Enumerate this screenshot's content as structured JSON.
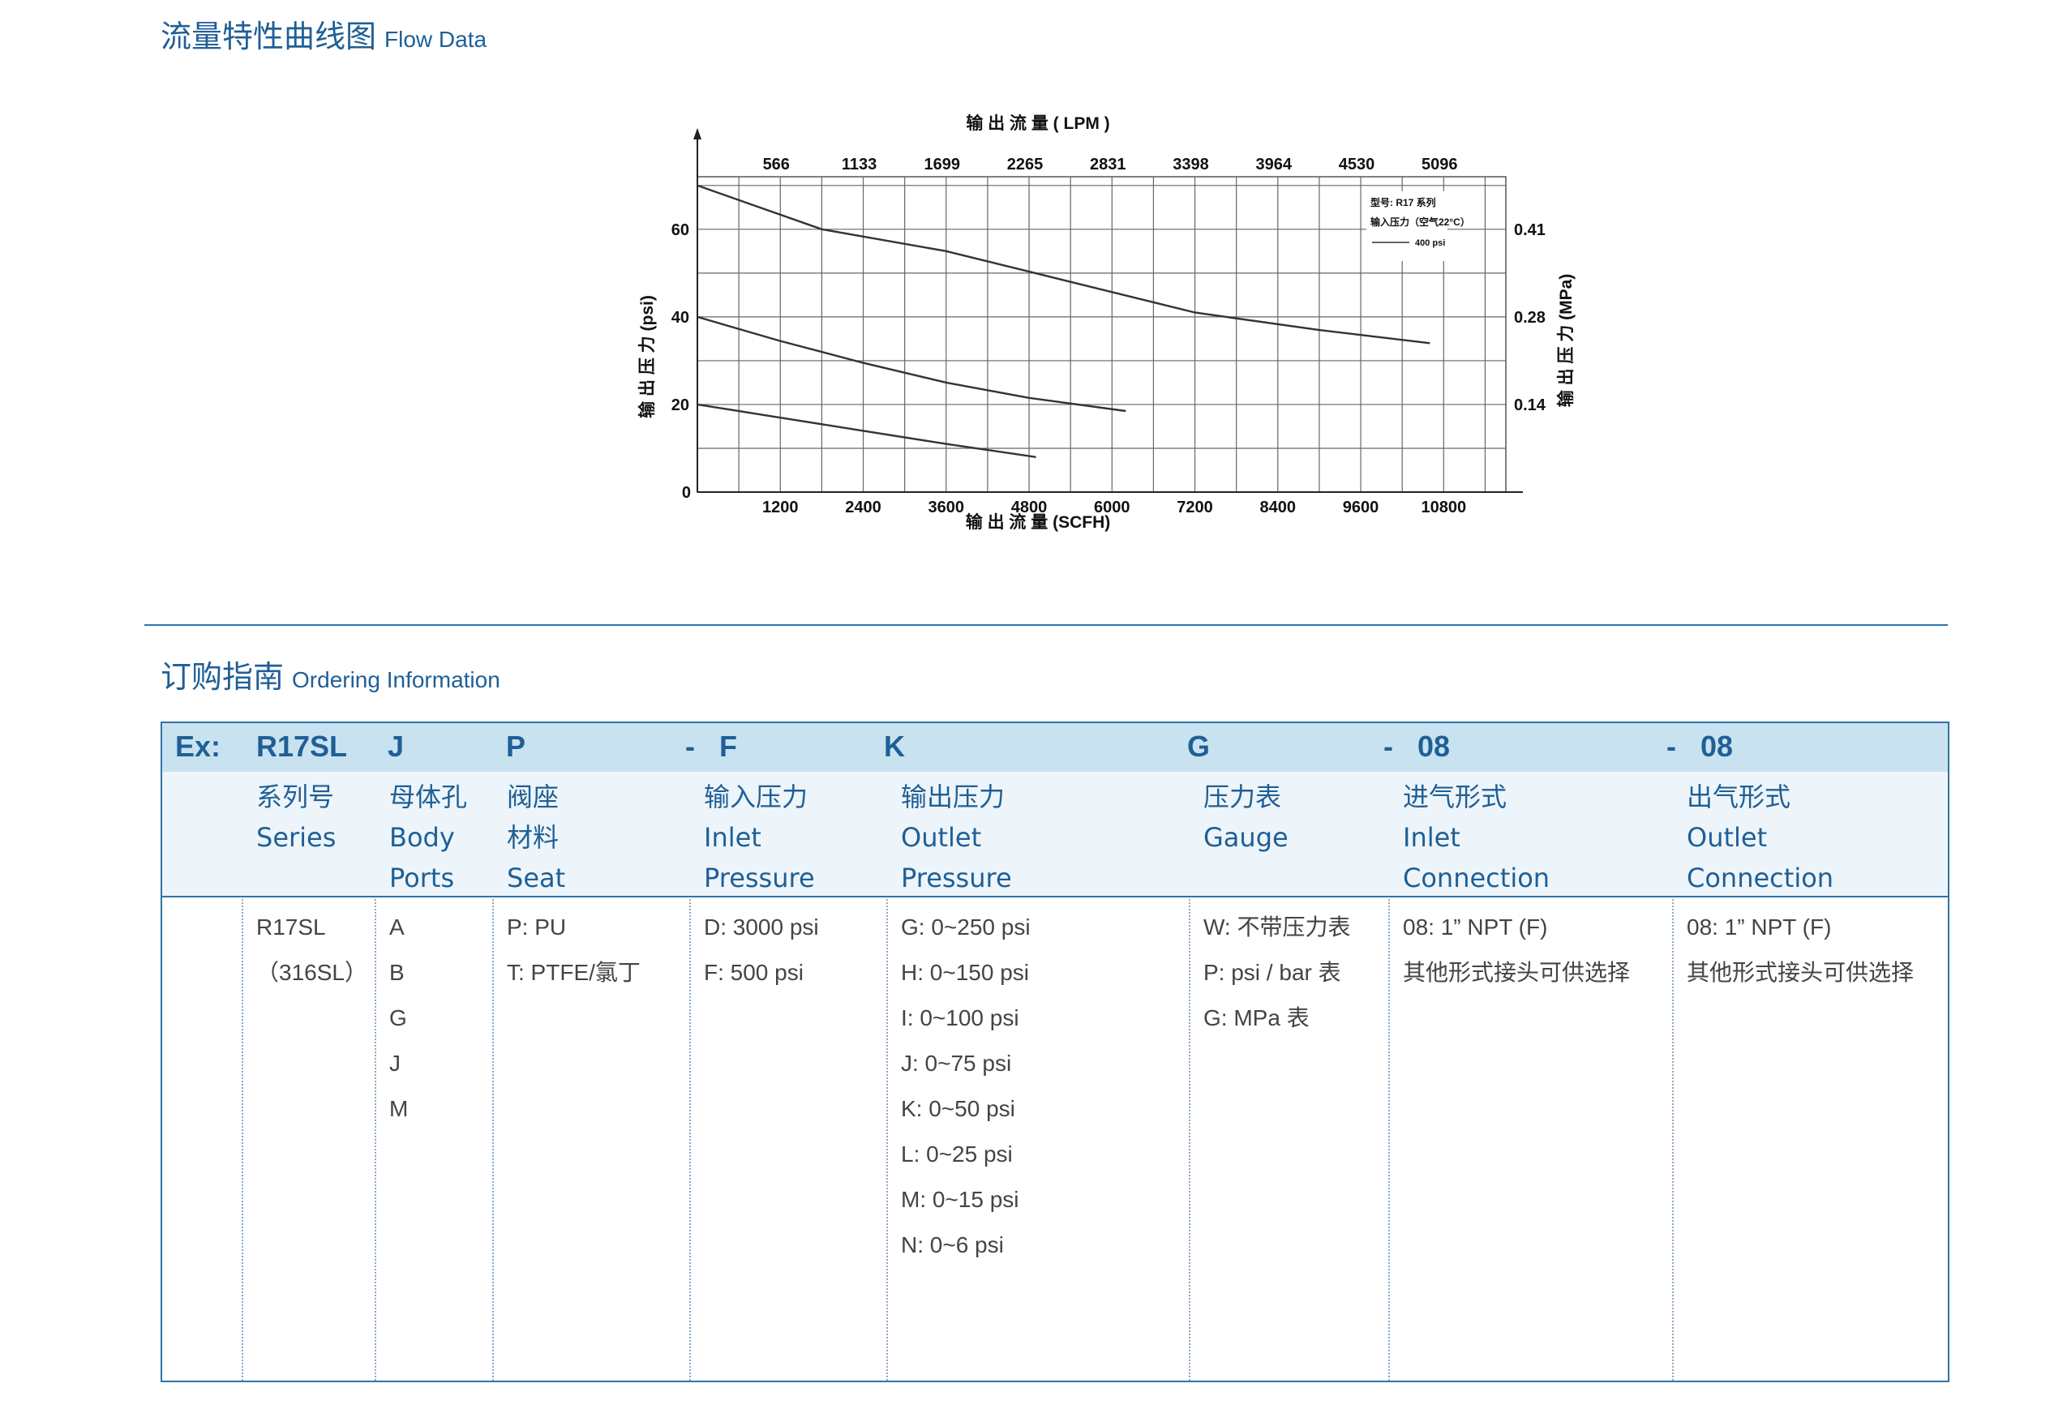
{
  "flow_section": {
    "title_zh": "流量特性曲线图",
    "title_en": "Flow Data"
  },
  "ordering_section": {
    "title_zh": "订购指南",
    "title_en": "Ordering Information"
  },
  "chart_data": {
    "type": "line",
    "title": "输 出 流 量 ( LPM )",
    "xlabel": "输 出 流 量 (SCFH)",
    "ylabel_left": "输 出 压 力 (psi)",
    "ylabel_right": "输 出 压 力 (MPa)",
    "x_ticks": [
      "1200",
      "2400",
      "3600",
      "4800",
      "6000",
      "7200",
      "8400",
      "9600",
      "10800"
    ],
    "x_top_ticks": [
      "566",
      "1133",
      "1699",
      "2265",
      "2831",
      "3398",
      "3964",
      "4530",
      "5096"
    ],
    "y_ticks": [
      "0",
      "20",
      "40",
      "60"
    ],
    "y_right_ticks": [
      "0.14",
      "0.28",
      "0.41"
    ],
    "xlim": [
      0,
      11700
    ],
    "ylim": [
      0,
      72
    ],
    "grid": true,
    "legend": {
      "model": "型号: R17 系列",
      "inlet": "输入压力（空气22°C）",
      "entry": "400 psi",
      "position": "top-right"
    },
    "series": [
      {
        "x": [
          0,
          1800,
          3600,
          5400,
          7200,
          9000,
          10600
        ],
        "y": [
          70,
          60,
          55,
          48,
          41,
          37,
          34
        ]
      },
      {
        "x": [
          0,
          1200,
          2400,
          3600,
          4800,
          6200
        ],
        "y": [
          40,
          34.5,
          29.5,
          25,
          21.5,
          18.5
        ]
      },
      {
        "x": [
          0,
          1200,
          2400,
          3600,
          4900
        ],
        "y": [
          20,
          17,
          14,
          11,
          8
        ]
      }
    ]
  },
  "order": {
    "codes": [
      "Ex:",
      "R17SL",
      "J",
      "P",
      "-   F",
      "K",
      "G",
      "-   08",
      "-   08"
    ],
    "columns": [
      {
        "zh": "系列号",
        "en1": "Series",
        "en2": "",
        "values": [
          "R17SL",
          "（316SL）"
        ]
      },
      {
        "zh": "母体孔",
        "en1": "Body",
        "en2": "Ports",
        "values": [
          "A",
          "B",
          "G",
          "J",
          "M"
        ]
      },
      {
        "zh": "阀座",
        "en1": "材料",
        "en2": "Seat",
        "values": [
          "P: PU",
          "T: PTFE/氯丁"
        ]
      },
      {
        "zh": "输入压力",
        "en1": "Inlet",
        "en2": "Pressure",
        "values": [
          "D: 3000 psi",
          "F: 500 psi"
        ]
      },
      {
        "zh": "输出压力",
        "en1": "Outlet",
        "en2": "Pressure",
        "values": [
          "G: 0~250 psi",
          "H: 0~150 psi",
          "I: 0~100 psi",
          "J: 0~75 psi",
          "K: 0~50 psi",
          "L: 0~25 psi",
          "M: 0~15 psi",
          "N: 0~6 psi"
        ]
      },
      {
        "zh": "压力表",
        "en1": "Gauge",
        "en2": "",
        "values": [
          "W: 不带压力表",
          "P: psi / bar 表",
          "G: MPa 表"
        ]
      },
      {
        "zh": "进气形式",
        "en1": "Inlet",
        "en2": "Connection",
        "values": [
          "08: 1” NPT (F)",
          "其他形式接头可供选择"
        ]
      },
      {
        "zh": "出气形式",
        "en1": "Outlet",
        "en2": "Connection",
        "values": [
          "08: 1” NPT (F)",
          "其他形式接头可供选择"
        ]
      }
    ]
  }
}
